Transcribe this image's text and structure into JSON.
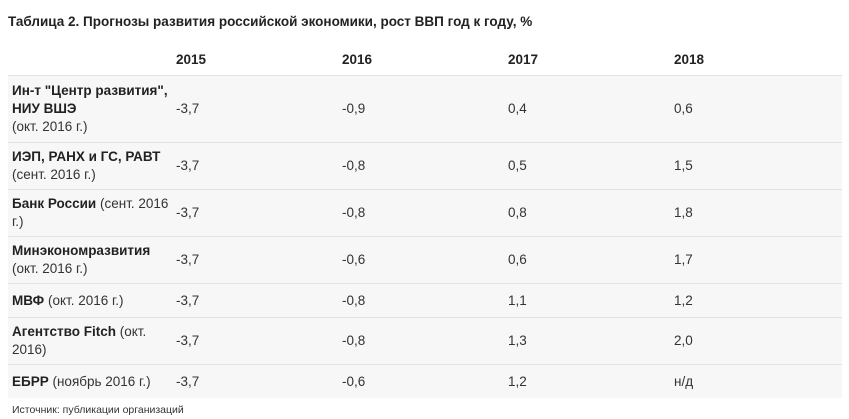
{
  "title": "Таблица 2. Прогнозы развития российской экономики, рост ВВП год к году, %",
  "table": {
    "headers": [
      "",
      "2015",
      "2016",
      "2017",
      "2018"
    ],
    "rows": [
      {
        "org": "Ин-т \"Центр развития\", НИУ ВШЭ",
        "date": "(окт. 2016 г.)",
        "values": [
          "-3,7",
          "-0,9",
          "0,4",
          "0,6"
        ]
      },
      {
        "org": "ИЭП, РАНХ и ГС, РАВТ",
        "date": "(сент. 2016 г.)",
        "values": [
          "-3,7",
          "-0,8",
          "0,5",
          "1,5"
        ]
      },
      {
        "org": "Банк России",
        "date": "(сент. 2016 г.)",
        "values": [
          "-3,7",
          "-0,8",
          "0,8",
          "1,8"
        ]
      },
      {
        "org": "Минэкономразвития",
        "date": "(окт. 2016 г.)",
        "values": [
          "-3,7",
          "-0,6",
          "0,6",
          "1,7"
        ]
      },
      {
        "org": "МВФ",
        "date": "(окт. 2016 г.)",
        "values": [
          "-3,7",
          "-0,8",
          "1,1",
          "1,2"
        ]
      },
      {
        "org": "Агентство Fitch",
        "date": "(окт. 2016)",
        "values": [
          "-3,7",
          "-0,8",
          "1,3",
          "2,0"
        ]
      },
      {
        "org": "ЕБРР",
        "date": "(ноябрь 2016 г.)",
        "values": [
          "-3,7",
          "-0,6",
          "1,2",
          "н/д"
        ]
      }
    ]
  },
  "source": "Источник: публикации организаций"
}
